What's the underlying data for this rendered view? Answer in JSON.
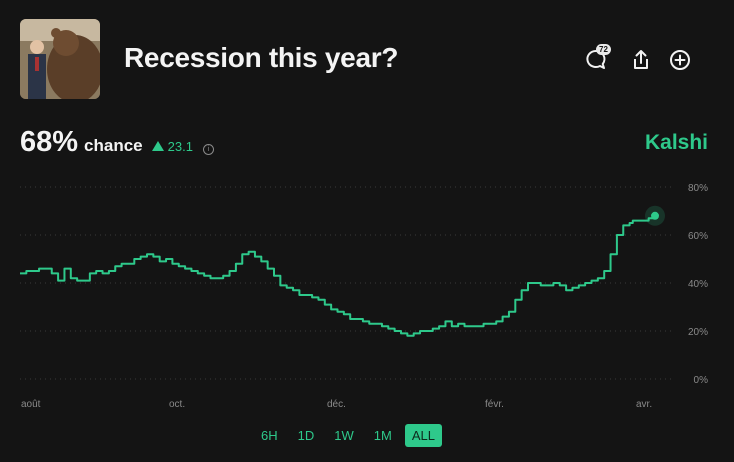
{
  "market": {
    "title": "Recession this year?",
    "comments_count": "72"
  },
  "stat": {
    "percent": "68%",
    "label": "chance",
    "delta": "23.1",
    "info": "i"
  },
  "brand": "Kalshi",
  "colors": {
    "accent": "#2ec98b",
    "background": "#141414"
  },
  "icons": [
    "comment-icon",
    "share-icon",
    "plus-circle-icon",
    "info-icon",
    "up-triangle-icon"
  ],
  "ranges": [
    {
      "label": "6H",
      "active": false
    },
    {
      "label": "1D",
      "active": false
    },
    {
      "label": "1W",
      "active": false
    },
    {
      "label": "1M",
      "active": false
    },
    {
      "label": "ALL",
      "active": true
    }
  ],
  "chart_data": {
    "type": "line",
    "title": "",
    "xlabel": "",
    "ylabel": "",
    "ylim": [
      0,
      80
    ],
    "y_ticks": [
      "80%",
      "60%",
      "40%",
      "20%",
      "0%"
    ],
    "x_ticks": [
      "août",
      "oct.",
      "déc.",
      "févr.",
      "avr."
    ],
    "grid": true,
    "series": [
      {
        "color": "#2ec98b",
        "x": [
          0,
          0.01,
          0.02,
          0.03,
          0.05,
          0.06,
          0.07,
          0.08,
          0.09,
          0.1,
          0.11,
          0.12,
          0.13,
          0.14,
          0.15,
          0.16,
          0.17,
          0.18,
          0.19,
          0.2,
          0.21,
          0.22,
          0.23,
          0.24,
          0.25,
          0.26,
          0.27,
          0.28,
          0.29,
          0.3,
          0.31,
          0.32,
          0.33,
          0.34,
          0.35,
          0.36,
          0.37,
          0.38,
          0.39,
          0.4,
          0.41,
          0.42,
          0.43,
          0.44,
          0.45,
          0.46,
          0.47,
          0.48,
          0.49,
          0.5,
          0.51,
          0.52,
          0.53,
          0.54,
          0.55,
          0.56,
          0.57,
          0.58,
          0.59,
          0.6,
          0.61,
          0.62,
          0.63,
          0.64,
          0.65,
          0.66,
          0.67,
          0.68,
          0.69,
          0.7,
          0.71,
          0.72,
          0.73,
          0.74,
          0.75,
          0.76,
          0.77,
          0.78,
          0.79,
          0.8,
          0.81,
          0.82,
          0.83,
          0.84,
          0.85,
          0.86,
          0.87,
          0.88,
          0.89,
          0.9,
          0.91,
          0.92,
          0.93,
          0.94,
          0.95,
          0.96,
          0.965,
          0.97,
          0.98,
          0.99,
          1.0
        ],
        "y": [
          44,
          45,
          45,
          46,
          44,
          41,
          46,
          42,
          41,
          41,
          44,
          45,
          44,
          45,
          47,
          48,
          48,
          50,
          51,
          52,
          51,
          49,
          50,
          48,
          47,
          46,
          45,
          44,
          43,
          42,
          42,
          43,
          45,
          48,
          52,
          53,
          51,
          49,
          46,
          43,
          39,
          38,
          37,
          35,
          35,
          34,
          33,
          31,
          29,
          28,
          27,
          25,
          25,
          24,
          23,
          23,
          22,
          21,
          20,
          19,
          18,
          19,
          20,
          20,
          21,
          22,
          24,
          22,
          23,
          22,
          22,
          22,
          23,
          23,
          24,
          26,
          28,
          33,
          37,
          40,
          40,
          39,
          39,
          40,
          39,
          37,
          38,
          39,
          40,
          41,
          42,
          45,
          52,
          60,
          64,
          65,
          66,
          66,
          66,
          67,
          68
        ]
      }
    ]
  }
}
